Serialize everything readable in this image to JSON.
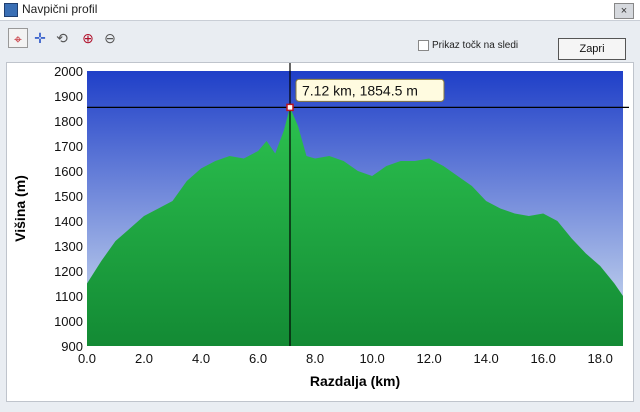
{
  "window": {
    "title": "Navpični profil",
    "close_glyph": "×"
  },
  "toolbar": {
    "buttons": [
      {
        "name": "crosshair-icon",
        "glyph": "⌖",
        "active": true
      },
      {
        "name": "crosshair-blue-icon",
        "glyph": "✛",
        "active": false
      },
      {
        "name": "zoom-reset-icon",
        "glyph": "⟲",
        "active": false
      },
      {
        "name": "zoom-in-icon",
        "glyph": "⊕",
        "active": false
      },
      {
        "name": "zoom-out-icon",
        "glyph": "⊖",
        "active": false
      }
    ],
    "show_points_label": "Prikaz točk na sledi",
    "close_label": "Zapri"
  },
  "colors": {
    "plot_bg_top": "#1f3fc8",
    "plot_bg_bottom": "#d8e6f2",
    "terrain": "#22b34a",
    "terrain_dark": "#148a32"
  },
  "chart_data": {
    "type": "area",
    "xlabel": "Razdalja  (km)",
    "ylabel": "Višina (m)",
    "xlim": [
      0,
      18.8
    ],
    "ylim": [
      900,
      2000
    ],
    "xticks": [
      "0.0",
      "2.0",
      "4.0",
      "6.0",
      "8.0",
      "10.0",
      "12.0",
      "14.0",
      "16.0",
      "18.0"
    ],
    "yticks": [
      "900",
      "1000",
      "1100",
      "1200",
      "1300",
      "1400",
      "1500",
      "1600",
      "1700",
      "1800",
      "1900",
      "2000"
    ],
    "grid": false,
    "x": [
      0,
      0.5,
      1.0,
      1.5,
      2.0,
      2.5,
      3.0,
      3.5,
      4.0,
      4.5,
      5.0,
      5.5,
      6.0,
      6.3,
      6.6,
      6.9,
      7.12,
      7.4,
      7.7,
      8.0,
      8.5,
      9.0,
      9.5,
      10.0,
      10.5,
      11.0,
      11.5,
      12.0,
      12.5,
      13.0,
      13.5,
      14.0,
      14.5,
      15.0,
      15.5,
      16.0,
      16.5,
      17.0,
      17.5,
      18.0,
      18.5,
      18.8
    ],
    "y": [
      1150,
      1240,
      1320,
      1370,
      1420,
      1450,
      1480,
      1560,
      1610,
      1640,
      1660,
      1650,
      1680,
      1720,
      1670,
      1760,
      1854.5,
      1780,
      1660,
      1650,
      1660,
      1640,
      1600,
      1580,
      1620,
      1640,
      1640,
      1650,
      1620,
      1580,
      1540,
      1480,
      1450,
      1430,
      1420,
      1430,
      1400,
      1330,
      1270,
      1220,
      1150,
      1100
    ],
    "cursor": {
      "x": 7.12,
      "y": 1854.5,
      "label": "7.12 km, 1854.5 m"
    }
  }
}
